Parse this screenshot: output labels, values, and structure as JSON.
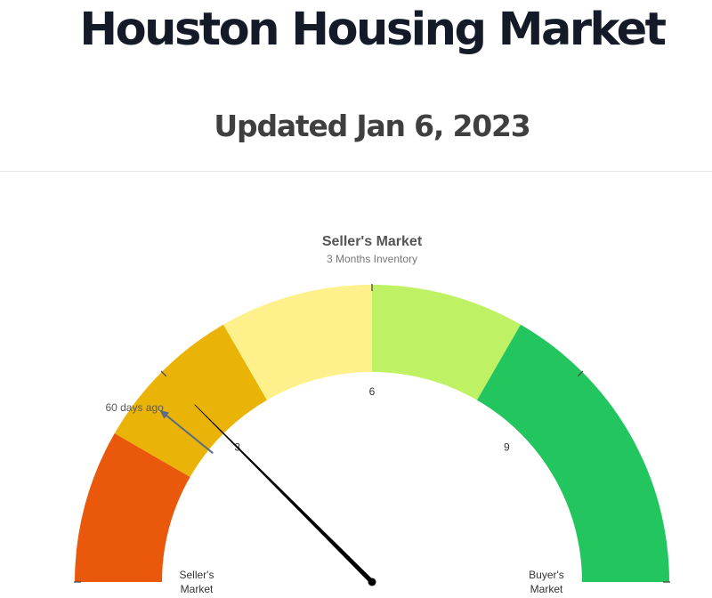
{
  "header": {
    "title": "Houston Housing Market",
    "subtitle": "Updated Jan 6, 2023"
  },
  "chart_data": {
    "type": "gauge",
    "title": "Seller's Market",
    "subtitle": "3 Months Inventory",
    "min": 0,
    "max": 12,
    "value": 3.0,
    "units": "months of inventory",
    "bands": [
      {
        "from": 0,
        "to": 2,
        "color": "#ea580c"
      },
      {
        "from": 2,
        "to": 4,
        "color": "#eab308"
      },
      {
        "from": 4,
        "to": 6,
        "color": "#fef08a"
      },
      {
        "from": 6,
        "to": 8,
        "color": "#bef264"
      },
      {
        "from": 8,
        "to": 12,
        "color": "#22c55e"
      }
    ],
    "tick_labels": [
      {
        "value": 3,
        "label": "3"
      },
      {
        "value": 6,
        "label": "6"
      },
      {
        "value": 9,
        "label": "9"
      }
    ],
    "marker": {
      "label": "60 days ago",
      "value": 2.6
    },
    "end_labels": {
      "left": [
        "Seller's",
        "Market"
      ],
      "right": [
        "Buyer's",
        "Market"
      ]
    },
    "colors": {
      "needle": "#000000",
      "marker": "#5b6b84",
      "tick": "#4a4a4a"
    }
  }
}
